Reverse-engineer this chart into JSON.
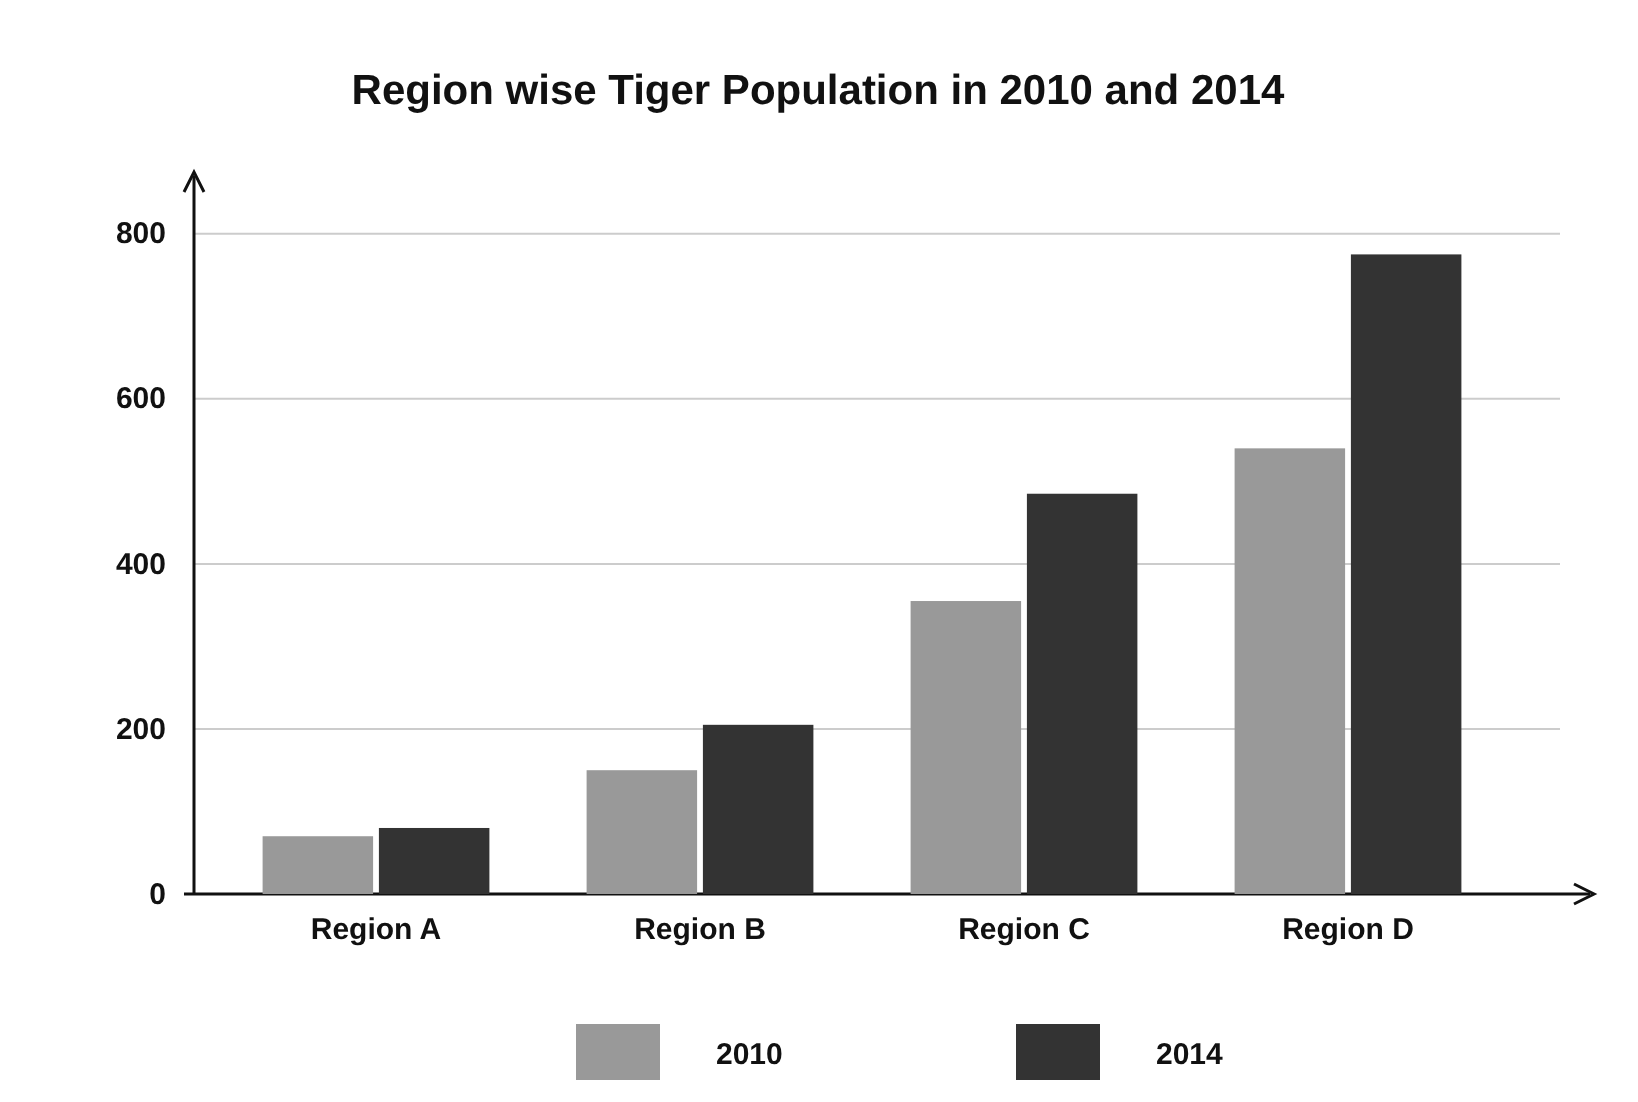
{
  "chart_data": {
    "type": "bar",
    "title": "Region wise Tiger Population in 2010 and 2014",
    "categories": [
      "Region A",
      "Region B",
      "Region C",
      "Region D"
    ],
    "series": [
      {
        "name": "2010",
        "color": "#999999",
        "values": [
          70,
          150,
          355,
          540
        ]
      },
      {
        "name": "2014",
        "color": "#333333",
        "values": [
          80,
          205,
          485,
          775
        ]
      }
    ],
    "ylim": [
      0,
      870
    ],
    "yticks": [
      0,
      200,
      400,
      600,
      800
    ],
    "grid": "y",
    "legend": "bottom"
  }
}
